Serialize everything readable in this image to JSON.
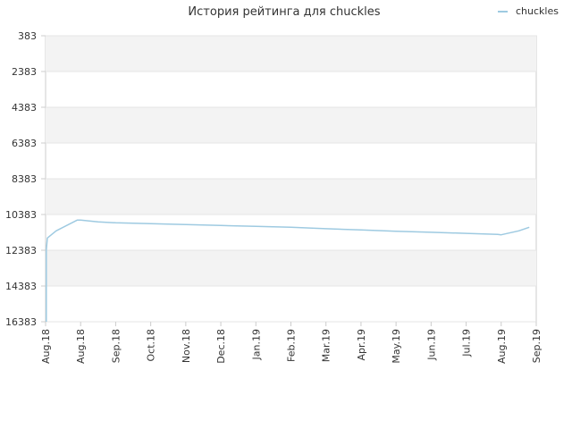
{
  "chart_data": {
    "type": "line",
    "title": "История рейтинга для chuckles",
    "xlabel": "",
    "ylabel": "",
    "y_inverted": true,
    "ylim": [
      383,
      16383
    ],
    "y_ticks": [
      383,
      2383,
      4383,
      6383,
      8383,
      10383,
      12383,
      14383,
      16383
    ],
    "x_ticks": [
      "Aug.18",
      "Aug.18",
      "Sep.18",
      "Oct.18",
      "Nov.18",
      "Dec.18",
      "Jan.19",
      "Feb.19",
      "Mar.19",
      "Apr.19",
      "May.19",
      "Jun.19",
      "Jul.19",
      "Aug.19",
      "Sep.19"
    ],
    "grid": true,
    "legend_position": "top-right",
    "colors": {
      "series": "#9ecae1",
      "band": "#f3f3f3",
      "grid": "#e6e6e6",
      "axis": "#cccccc"
    },
    "series": [
      {
        "name": "chuckles",
        "points": [
          {
            "x": 0.02,
            "y": 16383
          },
          {
            "x": 0.02,
            "y": 12383
          },
          {
            "x": 0.05,
            "y": 11700
          },
          {
            "x": 0.3,
            "y": 11300
          },
          {
            "x": 0.9,
            "y": 10700
          },
          {
            "x": 1.0,
            "y": 10700
          },
          {
            "x": 1.5,
            "y": 10800
          },
          {
            "x": 2.0,
            "y": 10850
          },
          {
            "x": 3.0,
            "y": 10900
          },
          {
            "x": 4.0,
            "y": 10950
          },
          {
            "x": 5.0,
            "y": 11000
          },
          {
            "x": 6.0,
            "y": 11050
          },
          {
            "x": 7.0,
            "y": 11100
          },
          {
            "x": 8.0,
            "y": 11180
          },
          {
            "x": 9.0,
            "y": 11250
          },
          {
            "x": 10.0,
            "y": 11320
          },
          {
            "x": 11.0,
            "y": 11380
          },
          {
            "x": 12.0,
            "y": 11440
          },
          {
            "x": 12.9,
            "y": 11500
          },
          {
            "x": 13.0,
            "y": 11520
          },
          {
            "x": 13.5,
            "y": 11300
          },
          {
            "x": 13.8,
            "y": 11100
          }
        ]
      }
    ]
  }
}
